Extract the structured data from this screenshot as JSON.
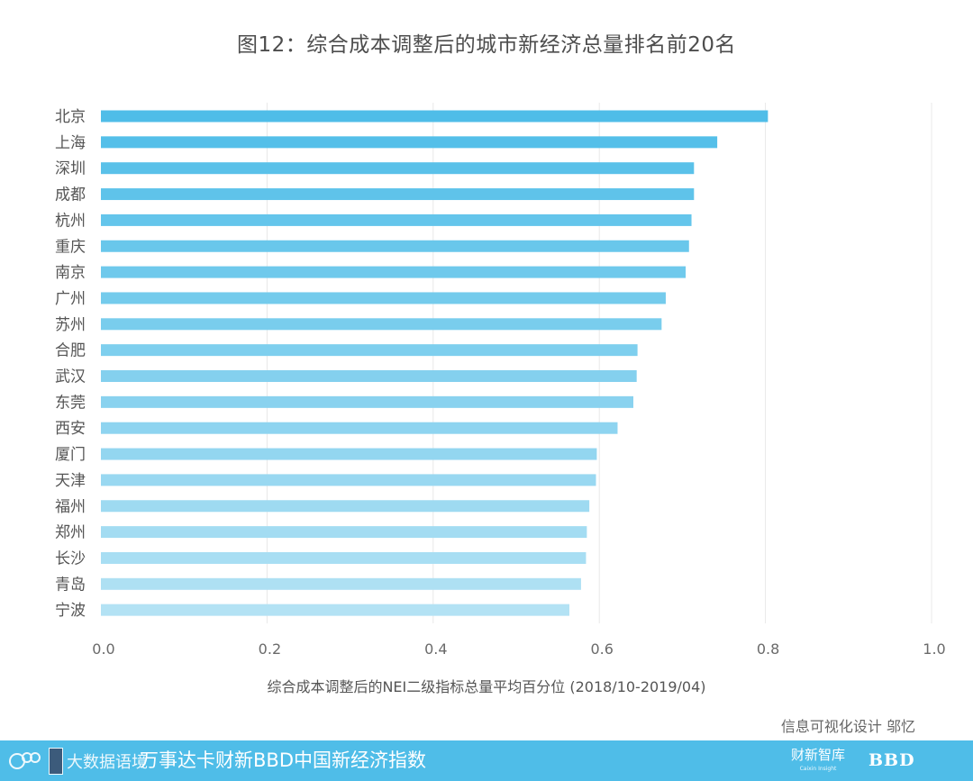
{
  "chart_data": {
    "type": "bar",
    "orientation": "horizontal",
    "title": "图12：综合成本调整后的城市新经济总量排名前20名",
    "xlabel": "综合成本调整后的NEI二级指标总量平均百分位 (2018/10-2019/04)",
    "ylabel": "",
    "xlim": [
      0.0,
      1.0
    ],
    "xticks": [
      "0.0",
      "0.2",
      "0.4",
      "0.6",
      "0.8",
      "1.0"
    ],
    "grid": "vertical",
    "categories": [
      "北京",
      "上海",
      "深圳",
      "成都",
      "杭州",
      "重庆",
      "南京",
      "广州",
      "苏州",
      "合肥",
      "武汉",
      "东莞",
      "西安",
      "厦门",
      "天津",
      "福州",
      "郑州",
      "长沙",
      "青岛",
      "宁波"
    ],
    "values": [
      0.803,
      0.742,
      0.714,
      0.714,
      0.711,
      0.708,
      0.704,
      0.68,
      0.675,
      0.646,
      0.645,
      0.641,
      0.622,
      0.597,
      0.596,
      0.588,
      0.585,
      0.584,
      0.578,
      0.564
    ],
    "colors": {
      "start": "#4fbde8",
      "end": "#b3e2f4"
    }
  },
  "credit": "信息可视化设计 邬忆",
  "footer": {
    "logo_left": "大数据语境",
    "title": "万事达卡财新BBD中国新经济指数",
    "logo_caixin": "财新智库",
    "logo_caixin_sub": "Caixin Insight",
    "logo_bbd": "BBD"
  }
}
